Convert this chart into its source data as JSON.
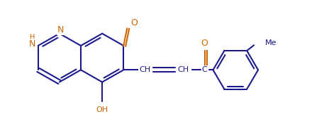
{
  "bg_color": "#ffffff",
  "bond_color": "#1a1a8c",
  "text_color": "#1a1a8c",
  "N_color": "#cc6600",
  "O_color": "#cc6600",
  "lw": 1.5,
  "figsize": [
    4.57,
    1.79
  ],
  "dpi": 100,
  "xlim": [
    0,
    457
  ],
  "ylim": [
    0,
    179
  ]
}
